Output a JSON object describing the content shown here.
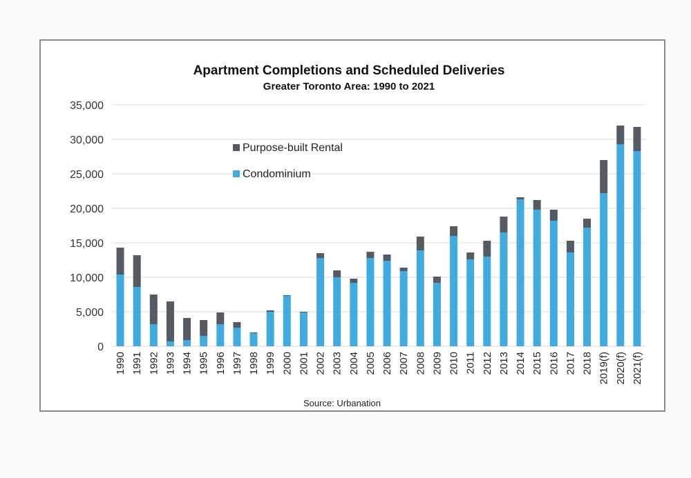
{
  "chart_data": {
    "type": "bar",
    "stacked": true,
    "title": "Apartment Completions and Scheduled Deliveries",
    "subtitle": "Greater Toronto Area: 1990 to 2021",
    "source": "Source: Urbanation",
    "xlabel": "",
    "ylabel": "",
    "ylim": [
      0,
      35000
    ],
    "yticks": [
      "0",
      "5,000",
      "10,000",
      "15,000",
      "20,000",
      "25,000",
      "30,000",
      "35,000"
    ],
    "ytick_values": [
      0,
      5000,
      10000,
      15000,
      20000,
      25000,
      30000,
      35000
    ],
    "grid": true,
    "legend_position": "top-left",
    "categories": [
      "1990",
      "1991",
      "1992",
      "1993",
      "1994",
      "1995",
      "1996",
      "1997",
      "1998",
      "1999",
      "2000",
      "2001",
      "2002",
      "2003",
      "2004",
      "2005",
      "2006",
      "2007",
      "2008",
      "2009",
      "2010",
      "2011",
      "2012",
      "2013",
      "2014",
      "2015",
      "2016",
      "2017",
      "2018",
      "2019(f)",
      "2020(f)",
      "2021(f)"
    ],
    "series": [
      {
        "name": "Condominium",
        "color": "#41aade",
        "values": [
          10400,
          8600,
          3200,
          700,
          900,
          1500,
          3200,
          2700,
          1900,
          5000,
          7300,
          4900,
          12800,
          10000,
          9200,
          12800,
          12400,
          10900,
          13900,
          9200,
          16000,
          12600,
          13000,
          16500,
          21300,
          19800,
          18200,
          13600,
          17200,
          22200,
          29300,
          28300
        ]
      },
      {
        "name": "Purpose-built Rental",
        "color": "#555b63",
        "values": [
          3900,
          4600,
          4300,
          5800,
          3200,
          2300,
          1700,
          800,
          100,
          200,
          100,
          100,
          700,
          1000,
          600,
          900,
          900,
          500,
          2000,
          900,
          1400,
          1000,
          2300,
          2300,
          300,
          1400,
          1600,
          1700,
          1300,
          4800,
          2700,
          3500
        ]
      }
    ]
  }
}
